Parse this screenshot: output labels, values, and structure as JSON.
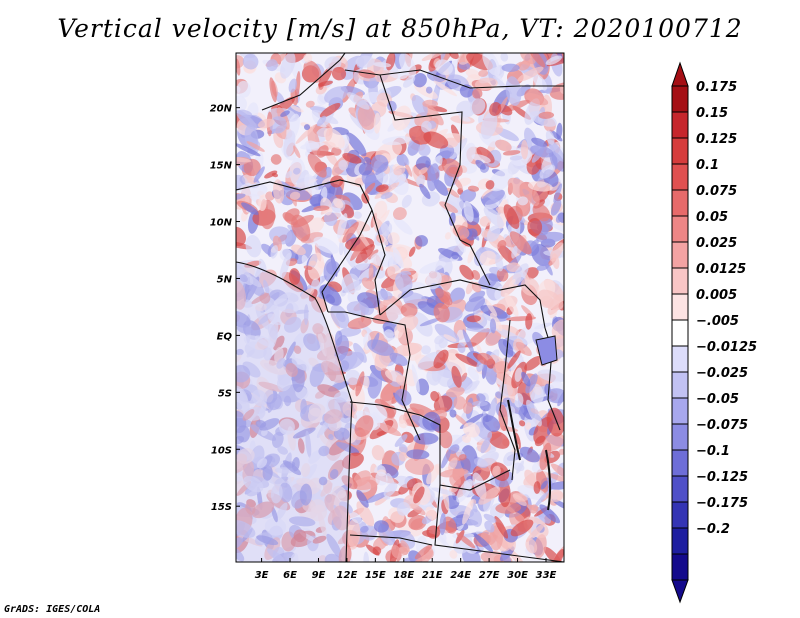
{
  "title": "Vertical velocity [m/s] at 850hPa, VT: 2020100712",
  "footer": "GrADS: IGES/COLA",
  "map": {
    "lat_labels": [
      "20N",
      "15N",
      "10N",
      "5N",
      "EQ",
      "5S",
      "10S",
      "15S"
    ],
    "lat_values": [
      20,
      15,
      10,
      5,
      0,
      -5,
      -10,
      -15
    ],
    "lon_labels": [
      "3E",
      "6E",
      "9E",
      "12E",
      "15E",
      "18E",
      "21E",
      "24E",
      "27E",
      "30E",
      "33E"
    ],
    "lon_values": [
      3,
      6,
      9,
      12,
      15,
      18,
      21,
      24,
      27,
      30,
      33
    ],
    "lat_range": [
      -19.9,
      24.8
    ],
    "lon_range": [
      0.3,
      34.9
    ]
  },
  "colorbar": {
    "labels": [
      "0.175",
      "0.15",
      "0.125",
      "0.1",
      "0.075",
      "0.05",
      "0.025",
      "0.0125",
      "0.005",
      "−.005",
      "−0.0125",
      "−0.025",
      "−0.05",
      "−0.075",
      "−0.1",
      "−0.125",
      "−0.175",
      "−0.2"
    ],
    "colors": [
      "#a50f15",
      "#c6262c",
      "#d63c3c",
      "#e05050",
      "#e76a6a",
      "#ee8686",
      "#f4a3a3",
      "#f9c6c6",
      "#fde4e4",
      "#ffffff",
      "#dcdcfa",
      "#c2c2f3",
      "#a8a8ee",
      "#8c8ce4",
      "#6e6ed8",
      "#5050c8",
      "#3434b4",
      "#1e1ea0",
      "#140a8c"
    ],
    "top_color": "#a50f15",
    "bottom_color": "#140a8c"
  }
}
